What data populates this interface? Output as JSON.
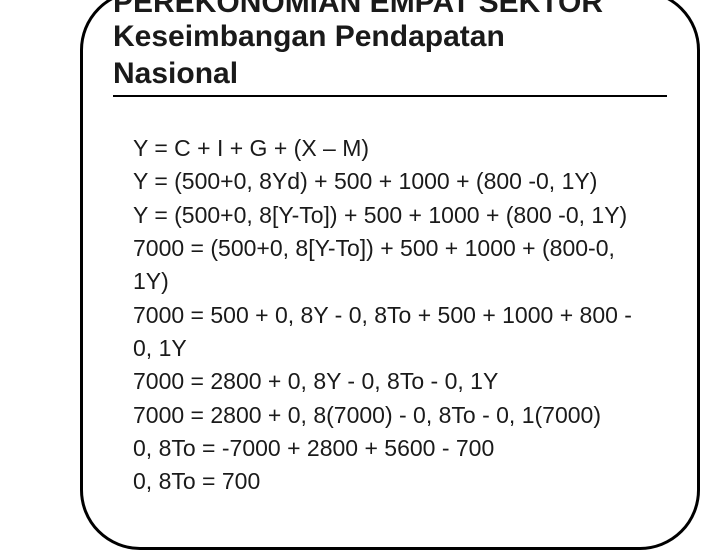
{
  "header": {
    "titleCut": "PEREKONOMIAN EMPAT SEKTOR",
    "subtitle1": "Keseimbangan Pendapatan",
    "subtitle2": "Nasional"
  },
  "equations": {
    "line1": "Y = C + I + G + (X – M)",
    "line2": "Y = (500+0, 8Yd) + 500 + 1000 + (800 -0, 1Y)",
    "line3": "Y = (500+0, 8[Y-To]) + 500 + 1000 + (800 -0, 1Y)",
    "line4": "7000 = (500+0, 8[Y-To]) + 500 + 1000 + (800-0, 1Y)",
    "line5": "7000 = 500 + 0, 8Y - 0, 8To + 500 + 1000 + 800 - 0, 1Y",
    "line6": "7000 = 2800 + 0, 8Y - 0, 8To - 0, 1Y",
    "line7": "7000 = 2800 + 0, 8(7000) - 0, 8To - 0, 1(7000)",
    "line8": "0, 8To = -7000 + 2800 + 5600 - 700",
    "line9": "0, 8To = 700"
  },
  "style": {
    "backgroundColor": "#ffffff",
    "textColor": "#1a1a1a",
    "borderColor": "#000000",
    "titleFontSize": 30,
    "bodyFontSize": 23,
    "borderRadius": 60,
    "borderWidth": 3
  }
}
